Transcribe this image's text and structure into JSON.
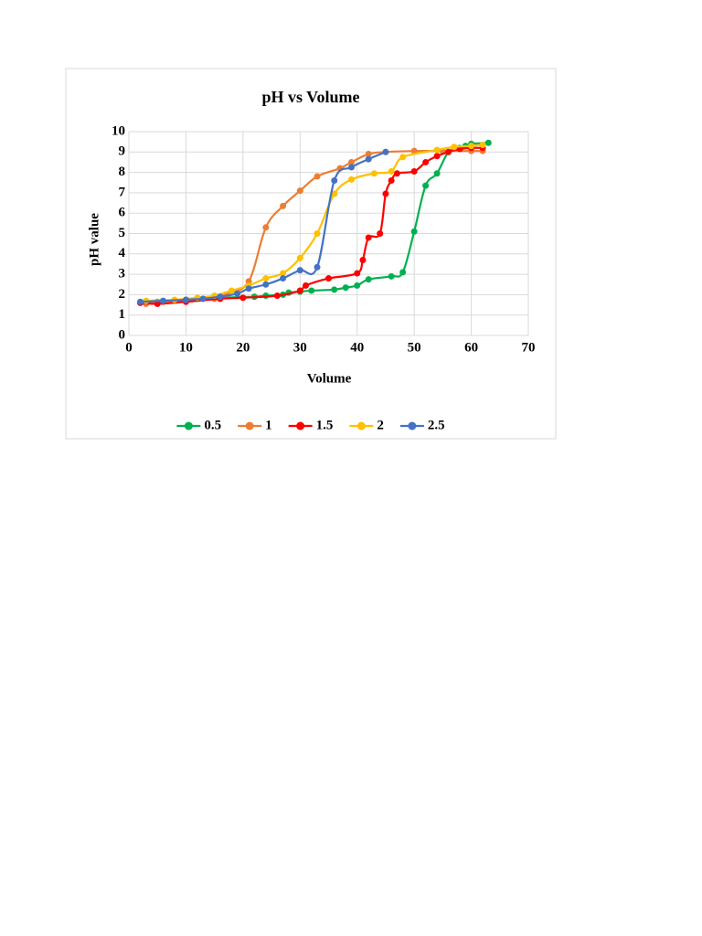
{
  "chart_data": {
    "type": "scatter",
    "title": "pH vs Volume",
    "x_label": "Volume",
    "y_label": "pH value",
    "xlim": [
      0,
      70
    ],
    "xticks": [
      0,
      10,
      20,
      30,
      40,
      50,
      60,
      70
    ],
    "ylim": [
      0,
      10
    ],
    "yticks": [
      0,
      1,
      2,
      3,
      4,
      5,
      6,
      7,
      8,
      9,
      10
    ],
    "grid": true,
    "smooth": true,
    "legend": "bottom",
    "series": [
      {
        "name": "0.5",
        "color": "#00b050",
        "x": [
          2,
          5,
          10,
          12,
          16,
          22,
          24,
          27,
          28,
          30,
          32,
          36,
          38,
          40,
          42,
          46,
          48,
          50,
          52,
          54,
          56,
          58,
          59,
          60,
          63
        ],
        "values": [
          1.6,
          1.65,
          1.75,
          1.8,
          1.85,
          1.9,
          1.95,
          2.0,
          2.1,
          2.15,
          2.2,
          2.25,
          2.35,
          2.45,
          2.75,
          2.9,
          3.1,
          5.1,
          7.35,
          7.95,
          9.0,
          9.2,
          9.3,
          9.4,
          9.45
        ]
      },
      {
        "name": "1",
        "color": "#ed7d31",
        "x": [
          3,
          6,
          10,
          15,
          17,
          21,
          24,
          27,
          30,
          33,
          37,
          39,
          42,
          45,
          50,
          55,
          60,
          62
        ],
        "values": [
          1.55,
          1.65,
          1.7,
          1.8,
          2.0,
          2.65,
          5.3,
          6.35,
          7.1,
          7.8,
          8.2,
          8.5,
          8.9,
          9.0,
          9.05,
          9.05,
          9.05,
          9.05
        ]
      },
      {
        "name": "1.5",
        "color": "#ff0000",
        "x": [
          2,
          5,
          10,
          16,
          20,
          26,
          30,
          31,
          35,
          40,
          41,
          42,
          44,
          45,
          46,
          47,
          50,
          52,
          54,
          56,
          58,
          60,
          62
        ],
        "values": [
          1.6,
          1.55,
          1.65,
          1.8,
          1.85,
          1.95,
          2.2,
          2.45,
          2.8,
          3.05,
          3.7,
          4.8,
          5.0,
          6.95,
          7.6,
          7.95,
          8.05,
          8.5,
          8.8,
          9.0,
          9.15,
          9.2,
          9.2
        ]
      },
      {
        "name": "2",
        "color": "#ffc000",
        "x": [
          3,
          8,
          12,
          15,
          18,
          21,
          24,
          27,
          30,
          33,
          36,
          39,
          43,
          46,
          48,
          54,
          57,
          60,
          62
        ],
        "values": [
          1.7,
          1.75,
          1.85,
          1.95,
          2.2,
          2.45,
          2.8,
          3.05,
          3.8,
          5.0,
          6.95,
          7.65,
          7.95,
          8.05,
          8.75,
          9.1,
          9.25,
          9.3,
          9.35
        ]
      },
      {
        "name": "2.5",
        "color": "#4472c4",
        "x": [
          2,
          6,
          10,
          13,
          16,
          19,
          21,
          24,
          27,
          30,
          33,
          36,
          39,
          42,
          45
        ],
        "values": [
          1.65,
          1.7,
          1.75,
          1.8,
          1.9,
          2.05,
          2.3,
          2.5,
          2.8,
          3.2,
          3.35,
          7.6,
          8.25,
          8.65,
          9.0
        ]
      }
    ]
  }
}
